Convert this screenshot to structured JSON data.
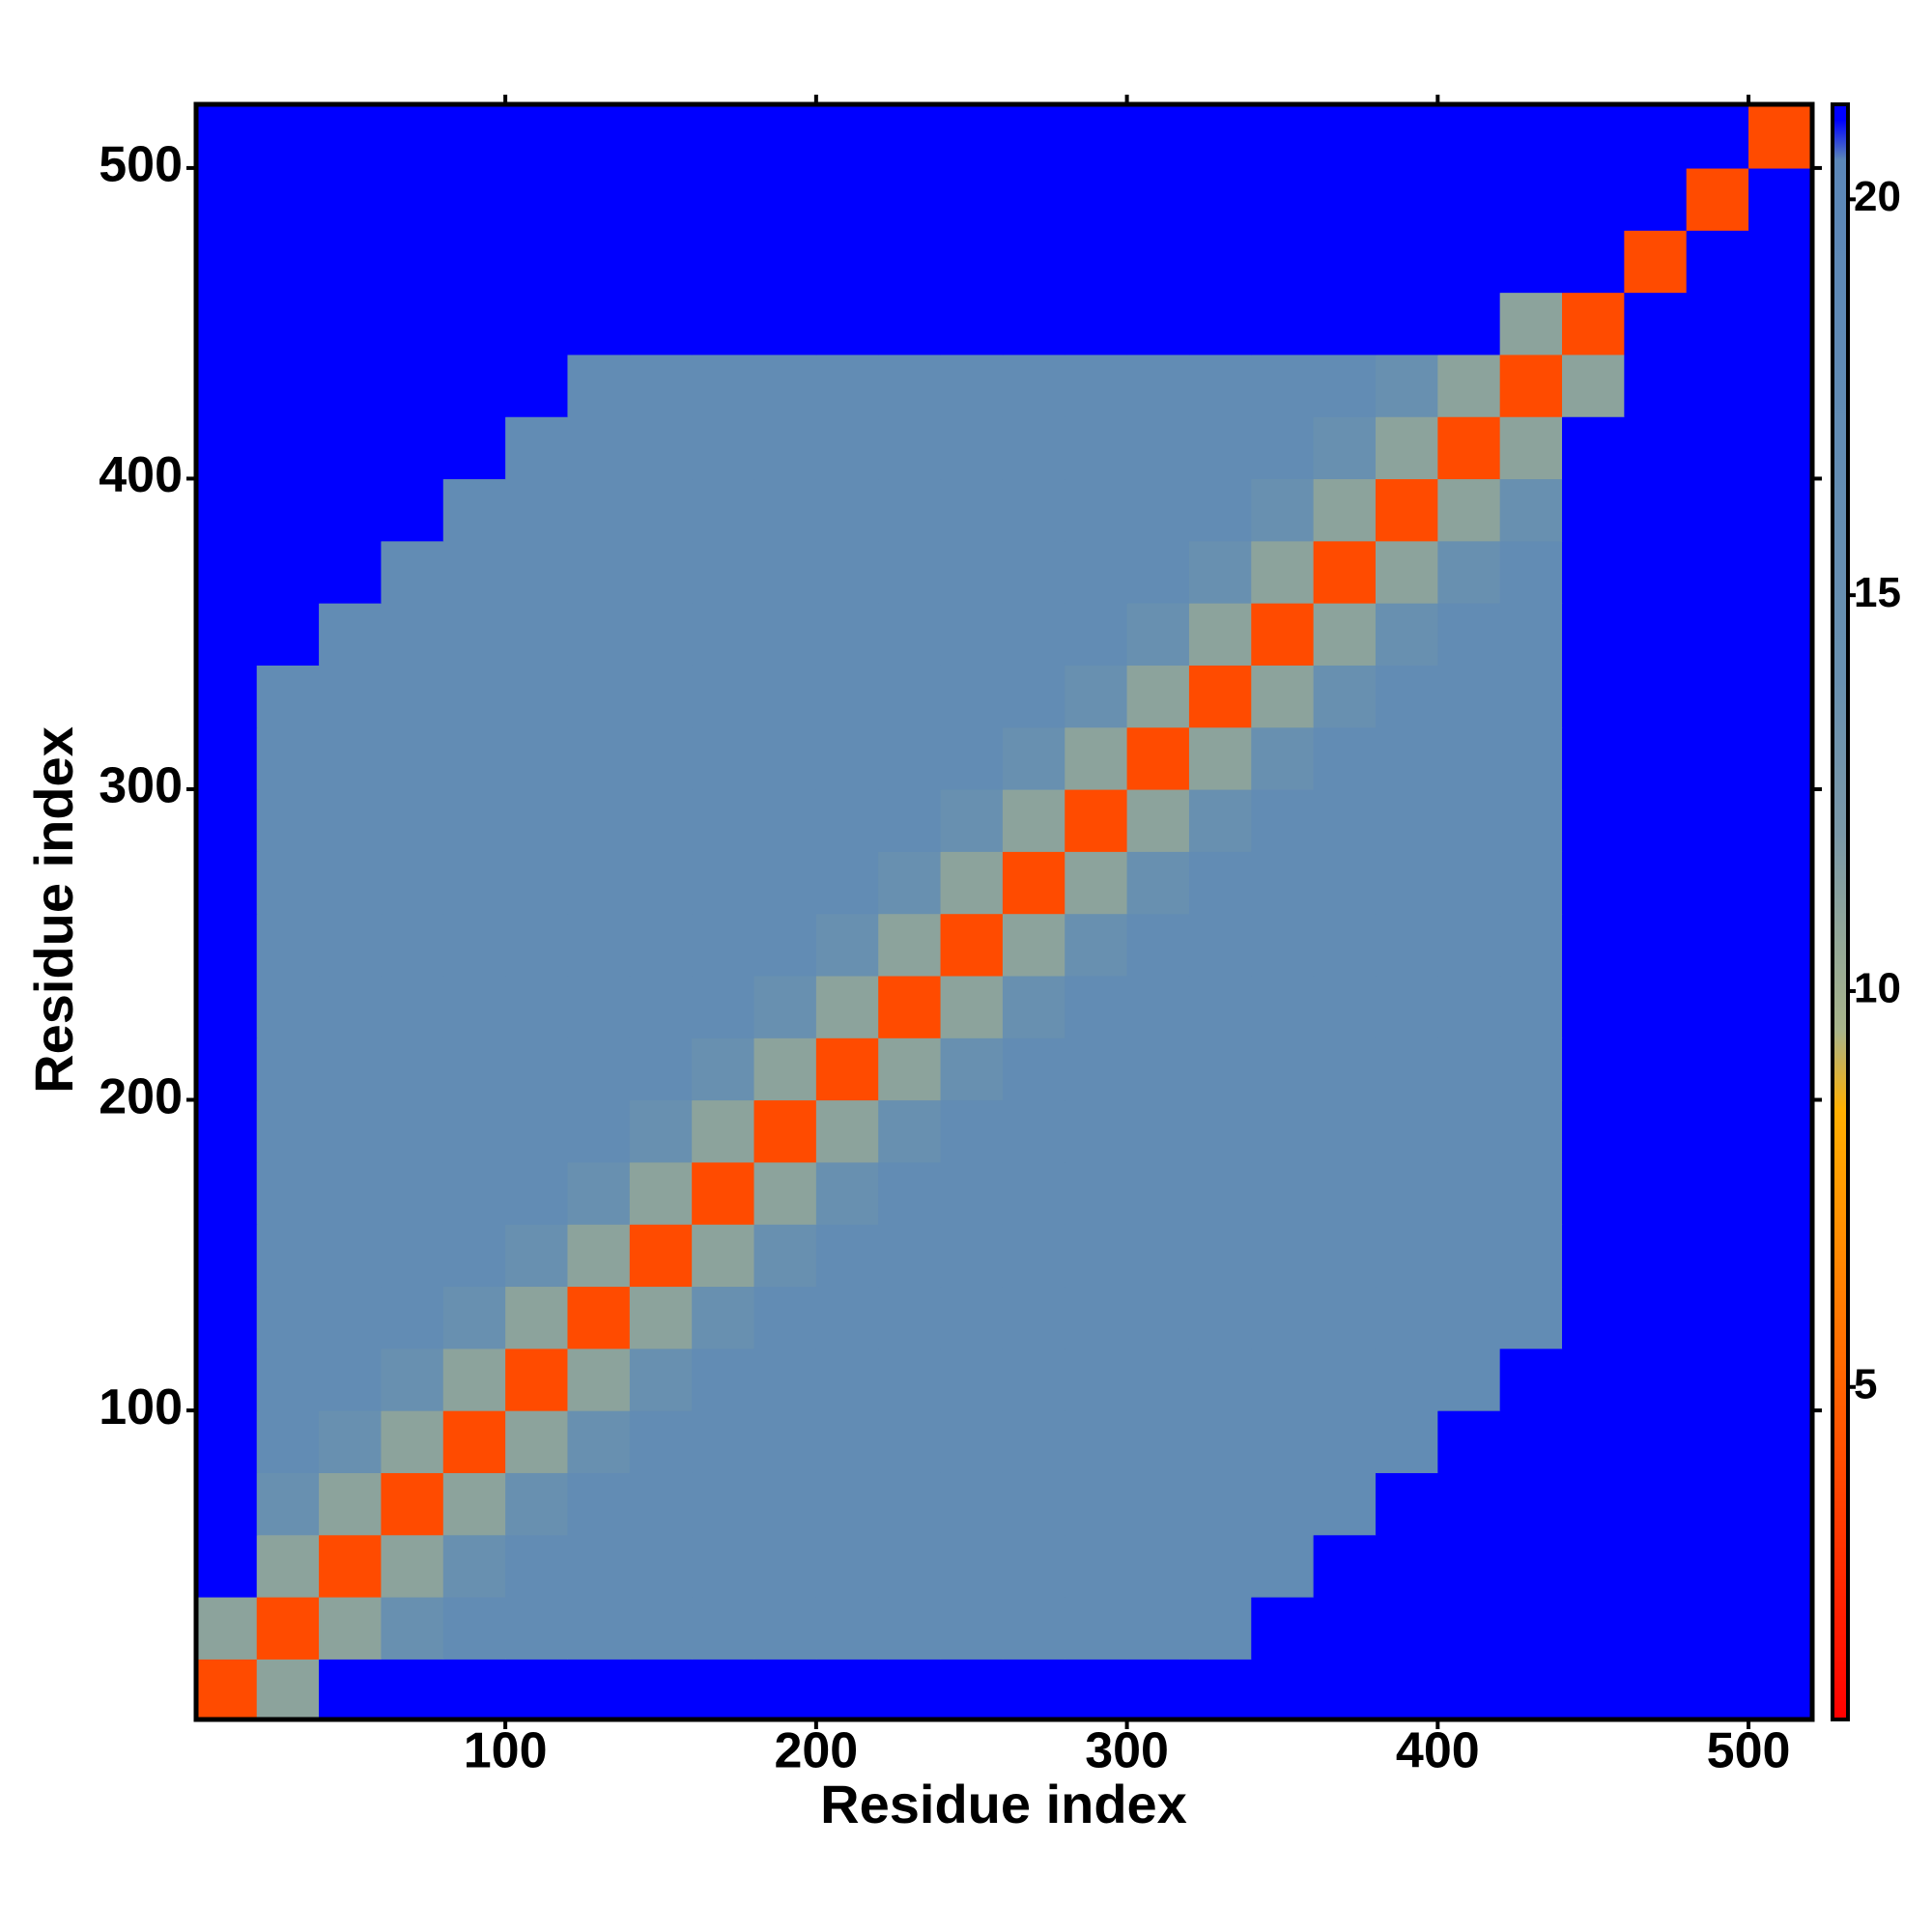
{
  "chart_data": {
    "type": "heatmap",
    "xlabel": "Residue index",
    "ylabel": "Residue index",
    "xlim": [
      0.5,
      520.5
    ],
    "ylim": [
      0.5,
      520.5
    ],
    "xticks": [
      100,
      200,
      300,
      400,
      500
    ],
    "yticks": [
      100,
      200,
      300,
      400,
      500
    ],
    "x": [
      10,
      30,
      50,
      70,
      90,
      110,
      130,
      150,
      170,
      190,
      210,
      230,
      250,
      270,
      290,
      310,
      330,
      350,
      370,
      390,
      410,
      430,
      450,
      470,
      490,
      510
    ],
    "y": [
      10,
      30,
      50,
      70,
      90,
      110,
      130,
      150,
      170,
      190,
      210,
      230,
      250,
      270,
      290,
      310,
      330,
      350,
      370,
      390,
      410,
      430,
      450,
      470,
      490,
      510
    ],
    "z": [
      [
        4,
        11,
        21,
        21,
        21,
        21,
        21,
        21,
        21,
        21,
        21,
        21,
        21,
        21,
        21,
        21,
        21,
        21,
        21,
        21,
        21,
        21,
        21,
        21,
        21,
        21
      ],
      [
        11,
        4,
        11,
        14,
        17,
        17,
        17,
        17,
        17,
        17,
        17,
        17,
        17,
        17,
        17,
        17,
        17,
        21,
        21,
        21,
        21,
        21,
        21,
        21,
        21,
        21
      ],
      [
        21,
        11,
        4,
        11,
        14,
        17,
        17,
        17,
        17,
        17,
        17,
        17,
        17,
        17,
        17,
        17,
        17,
        17,
        21,
        21,
        21,
        21,
        21,
        21,
        21,
        21
      ],
      [
        21,
        14,
        11,
        4,
        11,
        14,
        17,
        17,
        17,
        17,
        17,
        17,
        17,
        17,
        17,
        17,
        17,
        17,
        17,
        21,
        21,
        21,
        21,
        21,
        21,
        21
      ],
      [
        21,
        17,
        14,
        11,
        4,
        11,
        14,
        17,
        17,
        17,
        17,
        17,
        17,
        17,
        17,
        17,
        17,
        17,
        17,
        17,
        21,
        21,
        21,
        21,
        21,
        21
      ],
      [
        21,
        17,
        17,
        14,
        11,
        4,
        11,
        14,
        17,
        17,
        17,
        17,
        17,
        17,
        17,
        17,
        17,
        17,
        17,
        17,
        17,
        21,
        21,
        21,
        21,
        21
      ],
      [
        21,
        17,
        17,
        17,
        14,
        11,
        4,
        11,
        14,
        17,
        17,
        17,
        17,
        17,
        17,
        17,
        17,
        17,
        17,
        17,
        17,
        17,
        21,
        21,
        21,
        21
      ],
      [
        21,
        17,
        17,
        17,
        17,
        14,
        11,
        4,
        11,
        14,
        17,
        17,
        17,
        17,
        17,
        17,
        17,
        17,
        17,
        17,
        17,
        17,
        21,
        21,
        21,
        21
      ],
      [
        21,
        17,
        17,
        17,
        17,
        17,
        14,
        11,
        4,
        11,
        14,
        17,
        17,
        17,
        17,
        17,
        17,
        17,
        17,
        17,
        17,
        17,
        21,
        21,
        21,
        21
      ],
      [
        21,
        17,
        17,
        17,
        17,
        17,
        17,
        14,
        11,
        4,
        11,
        14,
        17,
        17,
        17,
        17,
        17,
        17,
        17,
        17,
        17,
        17,
        21,
        21,
        21,
        21
      ],
      [
        21,
        17,
        17,
        17,
        17,
        17,
        17,
        17,
        14,
        11,
        4,
        11,
        14,
        17,
        17,
        17,
        17,
        17,
        17,
        17,
        17,
        17,
        21,
        21,
        21,
        21
      ],
      [
        21,
        17,
        17,
        17,
        17,
        17,
        17,
        17,
        17,
        14,
        11,
        4,
        11,
        14,
        17,
        17,
        17,
        17,
        17,
        17,
        17,
        17,
        21,
        21,
        21,
        21
      ],
      [
        21,
        17,
        17,
        17,
        17,
        17,
        17,
        17,
        17,
        17,
        14,
        11,
        4,
        11,
        14,
        17,
        17,
        17,
        17,
        17,
        17,
        17,
        21,
        21,
        21,
        21
      ],
      [
        21,
        17,
        17,
        17,
        17,
        17,
        17,
        17,
        17,
        17,
        17,
        14,
        11,
        4,
        11,
        14,
        17,
        17,
        17,
        17,
        17,
        17,
        21,
        21,
        21,
        21
      ],
      [
        21,
        17,
        17,
        17,
        17,
        17,
        17,
        17,
        17,
        17,
        17,
        17,
        14,
        11,
        4,
        11,
        14,
        17,
        17,
        17,
        17,
        17,
        21,
        21,
        21,
        21
      ],
      [
        21,
        17,
        17,
        17,
        17,
        17,
        17,
        17,
        17,
        17,
        17,
        17,
        17,
        14,
        11,
        4,
        11,
        14,
        17,
        17,
        17,
        17,
        21,
        21,
        21,
        21
      ],
      [
        21,
        17,
        17,
        17,
        17,
        17,
        17,
        17,
        17,
        17,
        17,
        17,
        17,
        17,
        14,
        11,
        4,
        11,
        14,
        17,
        17,
        17,
        21,
        21,
        21,
        21
      ],
      [
        21,
        21,
        17,
        17,
        17,
        17,
        17,
        17,
        17,
        17,
        17,
        17,
        17,
        17,
        17,
        14,
        11,
        4,
        11,
        14,
        17,
        17,
        21,
        21,
        21,
        21
      ],
      [
        21,
        21,
        21,
        17,
        17,
        17,
        17,
        17,
        17,
        17,
        17,
        17,
        17,
        17,
        17,
        17,
        14,
        11,
        4,
        11,
        14,
        17,
        21,
        21,
        21,
        21
      ],
      [
        21,
        21,
        21,
        21,
        17,
        17,
        17,
        17,
        17,
        17,
        17,
        17,
        17,
        17,
        17,
        17,
        17,
        14,
        11,
        4,
        11,
        14,
        21,
        21,
        21,
        21
      ],
      [
        21,
        21,
        21,
        21,
        21,
        17,
        17,
        17,
        17,
        17,
        17,
        17,
        17,
        17,
        17,
        17,
        17,
        17,
        14,
        11,
        4,
        11,
        21,
        21,
        21,
        21
      ],
      [
        21,
        21,
        21,
        21,
        21,
        21,
        17,
        17,
        17,
        17,
        17,
        17,
        17,
        17,
        17,
        17,
        17,
        17,
        17,
        14,
        11,
        4,
        11,
        21,
        21,
        21
      ],
      [
        21,
        21,
        21,
        21,
        21,
        21,
        21,
        21,
        21,
        21,
        21,
        21,
        21,
        21,
        21,
        21,
        21,
        21,
        21,
        21,
        21,
        11,
        4,
        21,
        21,
        21
      ],
      [
        21,
        21,
        21,
        21,
        21,
        21,
        21,
        21,
        21,
        21,
        21,
        21,
        21,
        21,
        21,
        21,
        21,
        21,
        21,
        21,
        21,
        21,
        21,
        4,
        21,
        21
      ],
      [
        21,
        21,
        21,
        21,
        21,
        21,
        21,
        21,
        21,
        21,
        21,
        21,
        21,
        21,
        21,
        21,
        21,
        21,
        21,
        21,
        21,
        21,
        21,
        21,
        4,
        21
      ],
      [
        21,
        21,
        21,
        21,
        21,
        21,
        21,
        21,
        21,
        21,
        21,
        21,
        21,
        21,
        21,
        21,
        21,
        21,
        21,
        21,
        21,
        21,
        21,
        21,
        21,
        4
      ]
    ],
    "clim": [
      0.8,
      21.2
    ],
    "cticks": [
      5,
      10,
      15,
      20
    ],
    "colorscale": [
      {
        "value": 0.8,
        "color": "#ff0000"
      },
      {
        "value": 6,
        "color": "#ff7a00"
      },
      {
        "value": 8.5,
        "color": "#ffb000"
      },
      {
        "value": 9.5,
        "color": "#a8b48a"
      },
      {
        "value": 12,
        "color": "#7a98a8"
      },
      {
        "value": 14,
        "color": "#6890b0"
      },
      {
        "value": 20.5,
        "color": "#5b87b8"
      },
      {
        "value": 21,
        "color": "#0000ff"
      },
      {
        "value": 21.2,
        "color": "#0000ff"
      }
    ]
  }
}
